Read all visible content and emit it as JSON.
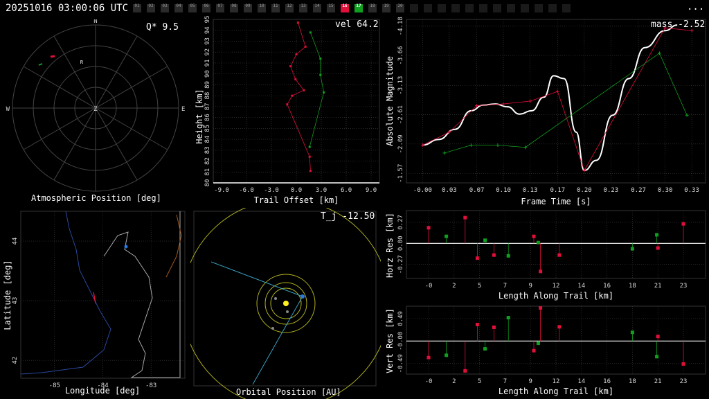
{
  "header": {
    "timestamp": "20251016 03:00:06 UTC",
    "menu_label": "...",
    "segments": [
      "01",
      "02",
      "03",
      "04",
      "05",
      "06",
      "07",
      "08",
      "09",
      "10",
      "11",
      "12",
      "13",
      "14",
      "15",
      "16",
      "17",
      "18",
      "19",
      "20"
    ],
    "selected_segment": "16",
    "highlight_segment": "17"
  },
  "sky_panel": {
    "title": "Atmospheric Position [deg]",
    "q_label": "Q*  9.5",
    "north": "N",
    "south": "S",
    "east": "E",
    "west": "W",
    "zenith": "Z",
    "radiant": "R"
  },
  "height_panel": {
    "vel_label": "vel 64.2",
    "xlabel": "Trail Offset [km]",
    "ylabel": "Height [km]"
  },
  "mag_panel": {
    "mass_label": "mass -2.52",
    "xlabel": "Frame Time [s]",
    "ylabel": "Absolute Magnitude"
  },
  "map_panel": {
    "xlabel": "Longitude [deg]",
    "ylabel": "Latitude [deg]"
  },
  "orbit_panel": {
    "tj_label": "T_j -12.50",
    "xlabel": "Orbital Position [AU]"
  },
  "horz_res_panel": {
    "xlabel": "Length Along Trail [km]",
    "ylabel": "Horz Res [km]"
  },
  "vert_res_panel": {
    "xlabel": "Length Along Trail [km]",
    "ylabel": "Vert Res [km]"
  },
  "colors": {
    "red": "#e0103a",
    "green": "#10a020",
    "grid": "#404040",
    "axis": "#ffffff"
  },
  "chart_data": [
    {
      "type": "scatter",
      "id": "height",
      "xlim": [
        -10,
        10
      ],
      "ylim": [
        80,
        95
      ],
      "xticks": [
        "-9.0",
        "-6.0",
        "-3.0",
        "0.0",
        "3.0",
        "6.0",
        "9.0"
      ],
      "xtick_values": [
        -9,
        -6,
        -3,
        0,
        3,
        6,
        9
      ],
      "yticks": [
        "80",
        "81",
        "82",
        "83",
        "84",
        "85",
        "86",
        "87",
        "88",
        "89",
        "90",
        "91",
        "92",
        "93",
        "94",
        "95"
      ],
      "ytick_values": [
        80,
        81,
        82,
        83,
        84,
        85,
        86,
        87,
        88,
        89,
        90,
        91,
        92,
        93,
        94,
        95
      ],
      "series": [
        {
          "color": "red",
          "x": [
            0.2,
            1.1,
            0.0,
            -0.7,
            -0.1,
            0.9,
            -0.5,
            -1.1,
            1.6,
            1.7
          ],
          "y": [
            94.7,
            92.5,
            91.8,
            90.7,
            89.5,
            88.5,
            88.0,
            87.2,
            82.4,
            81.1
          ]
        },
        {
          "color": "green",
          "x": [
            1.7,
            2.9,
            2.9,
            3.3,
            1.6
          ],
          "y": [
            93.8,
            91.4,
            89.9,
            88.3,
            83.3
          ]
        }
      ]
    },
    {
      "type": "line",
      "id": "magnitude",
      "xlim": [
        -0.02,
        0.35
      ],
      "ylim": [
        -1.4,
        -4.3
      ],
      "xticks": [
        "-0.00",
        "0.03",
        "0.07",
        "0.10",
        "0.13",
        "0.17",
        "0.20",
        "0.23",
        "0.27",
        "0.30",
        "0.33"
      ],
      "xtick_values": [
        0.0,
        0.033,
        0.067,
        0.1,
        0.133,
        0.167,
        0.2,
        0.233,
        0.267,
        0.3,
        0.333
      ],
      "yticks": [
        "-1.57",
        "-2.09",
        "-2.61",
        "-3.13",
        "-3.66",
        "-4.18"
      ],
      "ytick_values": [
        -1.57,
        -2.09,
        -2.61,
        -3.13,
        -3.66,
        -4.18
      ],
      "fit": {
        "x": [
          0.0,
          0.02,
          0.04,
          0.06,
          0.075,
          0.09,
          0.105,
          0.12,
          0.135,
          0.15,
          0.162,
          0.175,
          0.19,
          0.2,
          0.215,
          0.235,
          0.255,
          0.275,
          0.3,
          0.315
        ],
        "y": [
          -2.07,
          -2.17,
          -2.35,
          -2.68,
          -2.78,
          -2.8,
          -2.75,
          -2.62,
          -2.68,
          -2.92,
          -3.3,
          -3.25,
          -2.3,
          -1.62,
          -1.8,
          -2.6,
          -3.25,
          -3.8,
          -4.1,
          -4.2
        ]
      },
      "series": [
        {
          "color": "red",
          "x": [
            0.0,
            0.033,
            0.067,
            0.1,
            0.133,
            0.167,
            0.2,
            0.3,
            0.333
          ],
          "y": [
            -2.07,
            -2.3,
            -2.77,
            -2.8,
            -2.85,
            -3.02,
            -1.62,
            -4.15,
            -4.1
          ]
        },
        {
          "color": "green",
          "x": [
            0.027,
            0.06,
            0.093,
            0.127,
            0.293,
            0.327
          ],
          "y": [
            -1.93,
            -2.07,
            -2.07,
            -2.03,
            -3.7,
            -2.6
          ]
        }
      ]
    },
    {
      "type": "scatter",
      "id": "horz_res",
      "xlim": [
        -2,
        25
      ],
      "ylim": [
        -0.45,
        0.42
      ],
      "xticks": [
        "-0",
        "2",
        "5",
        "7",
        "9",
        "12",
        "14",
        "16",
        "18",
        "21",
        "23"
      ],
      "xtick_values": [
        0,
        2.3,
        4.6,
        6.9,
        9.2,
        11.5,
        13.8,
        16.1,
        18.4,
        20.7,
        23
      ],
      "yticks": [
        "-0.27",
        "0.00",
        "0.27"
      ],
      "ytick_values": [
        -0.27,
        0,
        0.27
      ],
      "series": [
        {
          "color": "red",
          "x": [
            0.0,
            3.3,
            4.4,
            5.9,
            9.5,
            10.1,
            11.8,
            20.7,
            23.0
          ],
          "y": [
            0.2,
            0.33,
            -0.19,
            -0.15,
            0.09,
            -0.36,
            -0.15,
            -0.06,
            0.25
          ]
        },
        {
          "color": "green",
          "x": [
            1.6,
            5.1,
            7.2,
            9.9,
            18.4,
            20.6
          ],
          "y": [
            0.09,
            0.04,
            -0.16,
            0.01,
            -0.07,
            0.11
          ]
        }
      ]
    },
    {
      "type": "scatter",
      "id": "vert_res",
      "xlim": [
        -2,
        25
      ],
      "ylim": [
        -0.72,
        0.76
      ],
      "xticks": [
        "-0",
        "2",
        "5",
        "7",
        "9",
        "12",
        "14",
        "16",
        "18",
        "21",
        "23"
      ],
      "xtick_values": [
        0,
        2.3,
        4.6,
        6.9,
        9.2,
        11.5,
        13.8,
        16.1,
        18.4,
        20.7,
        23
      ],
      "yticks": [
        "-0.49",
        "-0.00",
        "0.49"
      ],
      "ytick_values": [
        -0.49,
        0,
        0.49
      ],
      "series": [
        {
          "color": "red",
          "x": [
            0.0,
            3.3,
            4.4,
            5.9,
            9.5,
            10.1,
            11.8,
            20.7,
            23.0
          ],
          "y": [
            -0.36,
            -0.65,
            0.36,
            0.3,
            -0.21,
            0.72,
            0.31,
            0.1,
            -0.5
          ]
        },
        {
          "color": "green",
          "x": [
            1.6,
            5.1,
            7.2,
            9.9,
            18.4,
            20.6
          ],
          "y": [
            -0.31,
            -0.17,
            0.51,
            -0.05,
            0.19,
            -0.34
          ]
        }
      ]
    },
    {
      "type": "scatter",
      "id": "map",
      "xlim": [
        -85.7,
        -82.3
      ],
      "ylim": [
        41.7,
        44.5
      ],
      "xticks": [
        "-85",
        "-84",
        "-83"
      ],
      "xtick_values": [
        -85,
        -84,
        -83
      ],
      "yticks": [
        "42",
        "43",
        "44"
      ],
      "ytick_values": [
        42,
        43,
        44
      ]
    }
  ]
}
